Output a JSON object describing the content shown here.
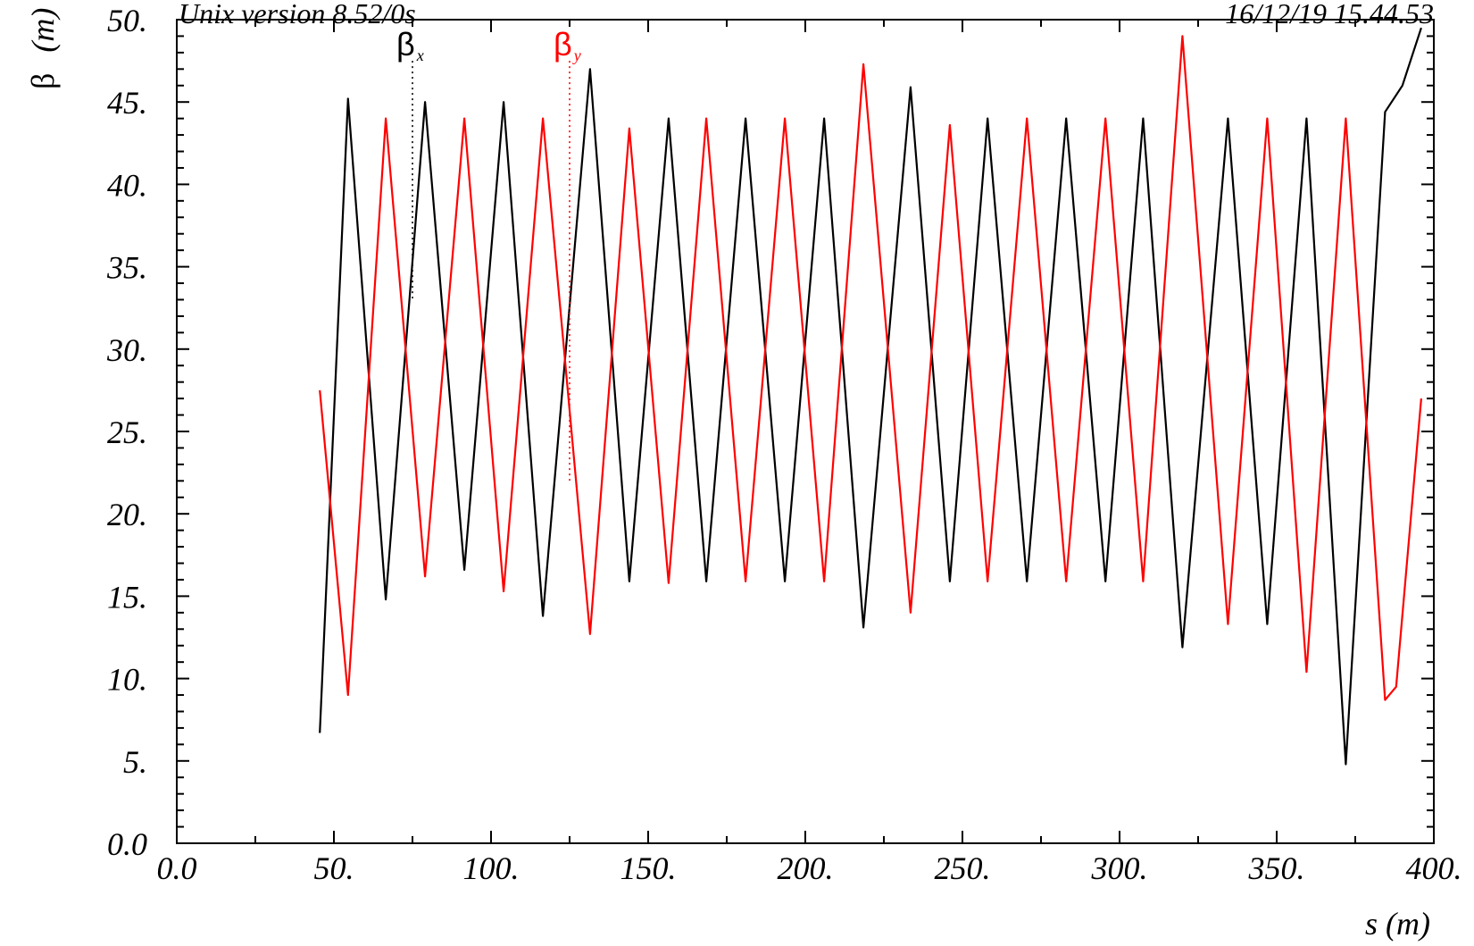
{
  "header": {
    "left": "Unix version 8.52/0s",
    "right": "16/12/19  15.44.53"
  },
  "chart_data": {
    "type": "line",
    "xlabel": "s (m)",
    "ylabel_symbol": "β",
    "ylabel_unit": "(m)",
    "xlim": [
      0,
      400
    ],
    "ylim": [
      0,
      50
    ],
    "x_ticks": [
      {
        "value": 0,
        "label": "0.0"
      },
      {
        "value": 50,
        "label": "50."
      },
      {
        "value": 100,
        "label": "100."
      },
      {
        "value": 150,
        "label": "150."
      },
      {
        "value": 200,
        "label": "200."
      },
      {
        "value": 250,
        "label": "250."
      },
      {
        "value": 300,
        "label": "300."
      },
      {
        "value": 350,
        "label": "350."
      },
      {
        "value": 400,
        "label": "400."
      }
    ],
    "y_ticks": [
      {
        "value": 0,
        "label": "0.0"
      },
      {
        "value": 5,
        "label": "5."
      },
      {
        "value": 10,
        "label": "10."
      },
      {
        "value": 15,
        "label": "15."
      },
      {
        "value": 20,
        "label": "20."
      },
      {
        "value": 25,
        "label": "25."
      },
      {
        "value": 30,
        "label": "30."
      },
      {
        "value": 35,
        "label": "35."
      },
      {
        "value": 40,
        "label": "40."
      },
      {
        "value": 45,
        "label": "45."
      },
      {
        "value": 50,
        "label": "50."
      }
    ],
    "grid": false,
    "legend": [
      {
        "symbol": "β",
        "sub": "x",
        "color": "#000000",
        "marker_x": 75,
        "marker_y_top": 47.5,
        "marker_y_bottom": 33
      },
      {
        "symbol": "β",
        "sub": "y",
        "color": "#ff0000",
        "marker_x": 125,
        "marker_y_top": 47.5,
        "marker_y_bottom": 22
      }
    ],
    "series": [
      {
        "name": "βx",
        "color": "#000000",
        "points": [
          [
            45.5,
            6.7
          ],
          [
            54.5,
            45.2
          ],
          [
            66.5,
            14.8
          ],
          [
            79.0,
            45.0
          ],
          [
            91.5,
            16.6
          ],
          [
            104.0,
            45.0
          ],
          [
            116.5,
            13.8
          ],
          [
            131.5,
            47.0
          ],
          [
            144.0,
            15.9
          ],
          [
            156.5,
            44.0
          ],
          [
            168.5,
            15.9
          ],
          [
            181.0,
            44.0
          ],
          [
            193.5,
            15.9
          ],
          [
            206.0,
            44.0
          ],
          [
            218.5,
            13.1
          ],
          [
            233.5,
            45.9
          ],
          [
            246.0,
            15.9
          ],
          [
            258.0,
            44.0
          ],
          [
            270.5,
            15.9
          ],
          [
            283.0,
            44.0
          ],
          [
            295.5,
            15.9
          ],
          [
            307.5,
            44.0
          ],
          [
            320.0,
            11.9
          ],
          [
            334.5,
            44.0
          ],
          [
            347.0,
            13.3
          ],
          [
            359.5,
            44.0
          ],
          [
            372.0,
            4.8
          ],
          [
            384.5,
            44.4
          ],
          [
            390.0,
            46.0
          ],
          [
            396.0,
            49.5
          ]
        ]
      },
      {
        "name": "βy",
        "color": "#ff0000",
        "points": [
          [
            45.5,
            27.5
          ],
          [
            54.5,
            9.0
          ],
          [
            66.5,
            44.0
          ],
          [
            79.0,
            16.2
          ],
          [
            91.5,
            44.0
          ],
          [
            104.0,
            15.3
          ],
          [
            116.5,
            44.0
          ],
          [
            131.5,
            12.7
          ],
          [
            144.0,
            43.4
          ],
          [
            156.5,
            15.8
          ],
          [
            168.5,
            44.0
          ],
          [
            181.0,
            15.9
          ],
          [
            193.5,
            44.0
          ],
          [
            206.0,
            15.9
          ],
          [
            218.5,
            47.3
          ],
          [
            233.5,
            14.0
          ],
          [
            246.0,
            43.6
          ],
          [
            258.0,
            15.9
          ],
          [
            270.5,
            44.0
          ],
          [
            283.0,
            15.9
          ],
          [
            295.5,
            44.0
          ],
          [
            307.5,
            15.9
          ],
          [
            320.0,
            49.0
          ],
          [
            334.5,
            13.3
          ],
          [
            347.0,
            44.0
          ],
          [
            359.5,
            10.4
          ],
          [
            372.0,
            44.0
          ],
          [
            384.5,
            8.7
          ],
          [
            388.0,
            9.5
          ],
          [
            396.0,
            27.0
          ]
        ]
      }
    ]
  }
}
